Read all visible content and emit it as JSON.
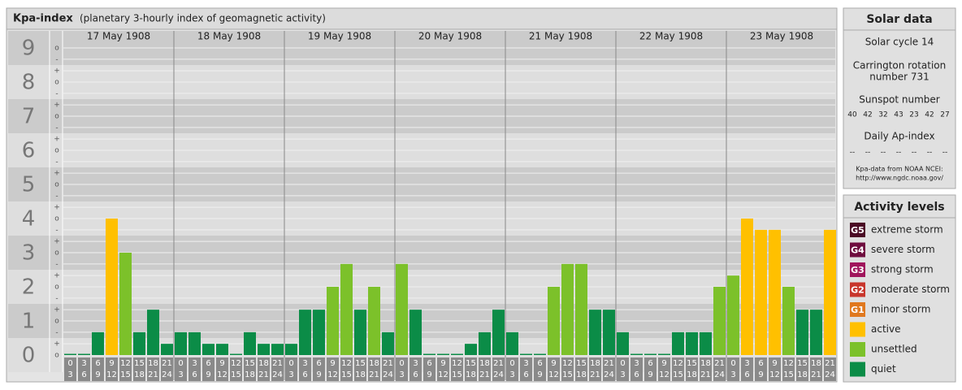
{
  "chart_data": {
    "type": "bar",
    "title": "Kpa-index",
    "subtitle": "(planetary 3-hourly index of geomagnetic activity)",
    "ylim": [
      -0.5,
      9.5
    ],
    "yticks": [
      0,
      1,
      2,
      3,
      4,
      5,
      6,
      7,
      8,
      9
    ],
    "minor_ticks": [
      {
        "value": 0,
        "label": "o"
      },
      {
        "value": 0.33,
        "label": "+"
      },
      {
        "value": 0.67,
        "label": "-"
      },
      {
        "value": 1,
        "label": "o"
      },
      {
        "value": 1.33,
        "label": "+"
      },
      {
        "value": 1.67,
        "label": "-"
      },
      {
        "value": 2,
        "label": "o"
      },
      {
        "value": 2.33,
        "label": "+"
      },
      {
        "value": 2.67,
        "label": "-"
      },
      {
        "value": 3,
        "label": "o"
      },
      {
        "value": 3.33,
        "label": "+"
      },
      {
        "value": 3.67,
        "label": "-"
      },
      {
        "value": 4,
        "label": "o"
      },
      {
        "value": 4.33,
        "label": "+"
      },
      {
        "value": 4.67,
        "label": "-"
      },
      {
        "value": 5,
        "label": "o"
      },
      {
        "value": 5.33,
        "label": "+"
      },
      {
        "value": 5.67,
        "label": "-"
      },
      {
        "value": 6,
        "label": "o"
      },
      {
        "value": 6.33,
        "label": "+"
      },
      {
        "value": 6.67,
        "label": "-"
      },
      {
        "value": 7,
        "label": "o"
      },
      {
        "value": 7.33,
        "label": "+"
      },
      {
        "value": 7.67,
        "label": "-"
      },
      {
        "value": 8,
        "label": "o"
      },
      {
        "value": 8.33,
        "label": "+"
      },
      {
        "value": 8.67,
        "label": "-"
      },
      {
        "value": 9,
        "label": "o"
      }
    ],
    "time_slots": [
      [
        "0",
        "3"
      ],
      [
        "3",
        "6"
      ],
      [
        "6",
        "9"
      ],
      [
        "9",
        "12"
      ],
      [
        "12",
        "15"
      ],
      [
        "15",
        "18"
      ],
      [
        "18",
        "21"
      ],
      [
        "21",
        "24"
      ]
    ],
    "days": [
      {
        "label": "17 May 1908",
        "values": [
          0,
          0,
          0.67,
          4,
          3,
          0.67,
          1.33,
          0.33
        ],
        "colors": [
          "#0b8c47",
          "#0b8c47",
          "#0b8c47",
          "#ffc000",
          "#7cc12a",
          "#0b8c47",
          "#0b8c47",
          "#0b8c47"
        ]
      },
      {
        "label": "18 May 1908",
        "values": [
          0.67,
          0.67,
          0.33,
          0.33,
          0,
          0.67,
          0.33,
          0.33
        ],
        "colors": [
          "#0b8c47",
          "#0b8c47",
          "#0b8c47",
          "#0b8c47",
          "#0b8c47",
          "#0b8c47",
          "#0b8c47",
          "#0b8c47"
        ]
      },
      {
        "label": "19 May 1908",
        "values": [
          0.33,
          1.33,
          1.33,
          2,
          2.67,
          1.33,
          2,
          0.67
        ],
        "colors": [
          "#0b8c47",
          "#0b8c47",
          "#0b8c47",
          "#7cc12a",
          "#7cc12a",
          "#0b8c47",
          "#7cc12a",
          "#0b8c47"
        ]
      },
      {
        "label": "20 May 1908",
        "values": [
          2.67,
          1.33,
          0,
          0,
          0,
          0.33,
          0.67,
          1.33
        ],
        "colors": [
          "#7cc12a",
          "#0b8c47",
          "#0b8c47",
          "#0b8c47",
          "#0b8c47",
          "#0b8c47",
          "#0b8c47",
          "#0b8c47"
        ]
      },
      {
        "label": "21 May 1908",
        "values": [
          0.67,
          0,
          0,
          2,
          2.67,
          2.67,
          1.33,
          1.33
        ],
        "colors": [
          "#0b8c47",
          "#0b8c47",
          "#0b8c47",
          "#7cc12a",
          "#7cc12a",
          "#7cc12a",
          "#0b8c47",
          "#0b8c47"
        ]
      },
      {
        "label": "22 May 1908",
        "values": [
          0.67,
          0,
          0,
          0,
          0.67,
          0.67,
          0.67,
          2
        ],
        "colors": [
          "#0b8c47",
          "#0b8c47",
          "#0b8c47",
          "#0b8c47",
          "#0b8c47",
          "#0b8c47",
          "#0b8c47",
          "#7cc12a"
        ]
      },
      {
        "label": "23 May 1908",
        "values": [
          2.33,
          4,
          3.67,
          3.67,
          2,
          1.33,
          1.33,
          3.67
        ],
        "colors": [
          "#7cc12a",
          "#ffc000",
          "#ffc000",
          "#ffc000",
          "#7cc12a",
          "#0b8c47",
          "#0b8c47",
          "#ffc000"
        ]
      }
    ]
  },
  "solar_data": {
    "title": "Solar data",
    "solar_cycle": "Solar cycle 14",
    "carrington": [
      "Carrington rotation",
      "number 731"
    ],
    "sunspot_title": "Sunspot number",
    "sunspot_numbers": [
      40,
      42,
      32,
      43,
      23,
      42,
      27
    ],
    "ap_title": "Daily Ap-index",
    "ap_values": [
      "--",
      "--",
      "--",
      "--",
      "--",
      "--",
      "--"
    ],
    "source": [
      "Kpa-data from NOAA NCEI:",
      "http://www.ngdc.noaa.gov/"
    ]
  },
  "activity_levels": {
    "title": "Activity levels",
    "items": [
      {
        "badge": "G5",
        "label": "extreme storm",
        "color": "#4a0a24"
      },
      {
        "badge": "G4",
        "label": "severe storm",
        "color": "#6e0c3e"
      },
      {
        "badge": "G3",
        "label": "strong storm",
        "color": "#a0155c"
      },
      {
        "badge": "G2",
        "label": "moderate storm",
        "color": "#c8362c"
      },
      {
        "badge": "G1",
        "label": "minor storm",
        "color": "#e0781e"
      },
      {
        "label": "active",
        "color": "#ffc000"
      },
      {
        "label": "unsettled",
        "color": "#7cc12a"
      },
      {
        "label": "quiet",
        "color": "#0b8c47"
      }
    ]
  }
}
